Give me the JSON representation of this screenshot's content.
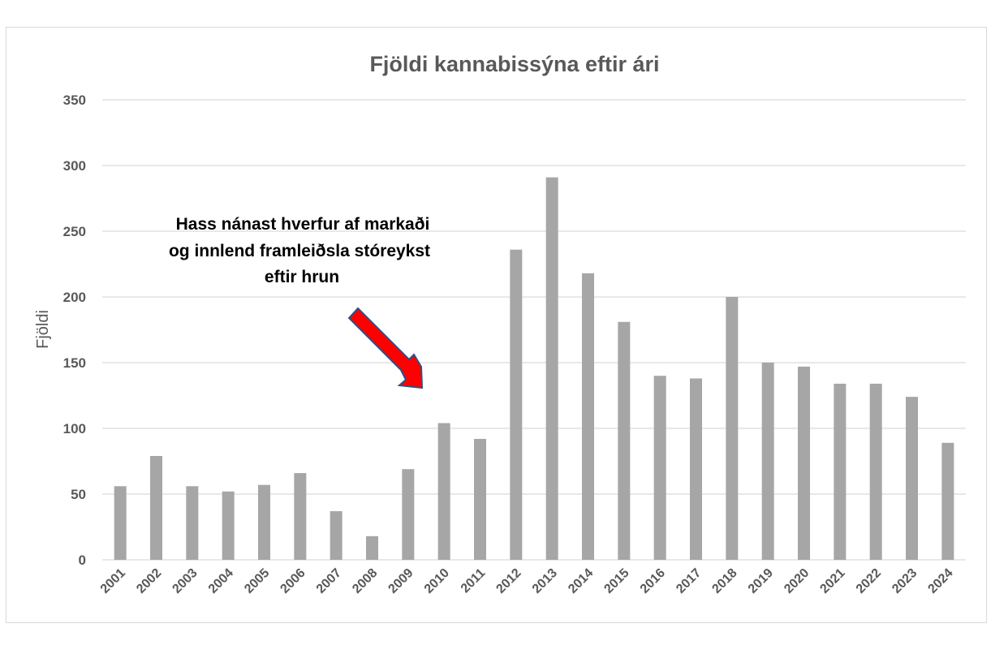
{
  "chart_data": {
    "type": "bar",
    "title": "Fjöldi kannabissýna eftir ári",
    "xlabel": "",
    "ylabel": "Fjöldi",
    "ylim": [
      0,
      350
    ],
    "yticks": [
      0,
      50,
      100,
      150,
      200,
      250,
      300,
      350
    ],
    "grid": true,
    "legend": "none",
    "categories": [
      "2001",
      "2002",
      "2003",
      "2004",
      "2005",
      "2006",
      "2007",
      "2008",
      "2009",
      "2010",
      "2011",
      "2012",
      "2013",
      "2014",
      "2015",
      "2016",
      "2017",
      "2018",
      "2019",
      "2020",
      "2021",
      "2022",
      "2023",
      "2024"
    ],
    "values": [
      56,
      79,
      56,
      52,
      57,
      66,
      37,
      18,
      69,
      104,
      92,
      236,
      291,
      218,
      181,
      140,
      138,
      200,
      150,
      147,
      134,
      134,
      124,
      89
    ],
    "annotation": {
      "lines": [
        "Hass nánast hverfur af markaði",
        "og innlend framleiðsla stóreykst",
        "eftir hrun"
      ],
      "points_to": "2010",
      "arrow_color": "#ff0000"
    },
    "bar_color": "#a6a6a6",
    "grid_color": "#d9d9d9",
    "text_color": "#595959"
  }
}
